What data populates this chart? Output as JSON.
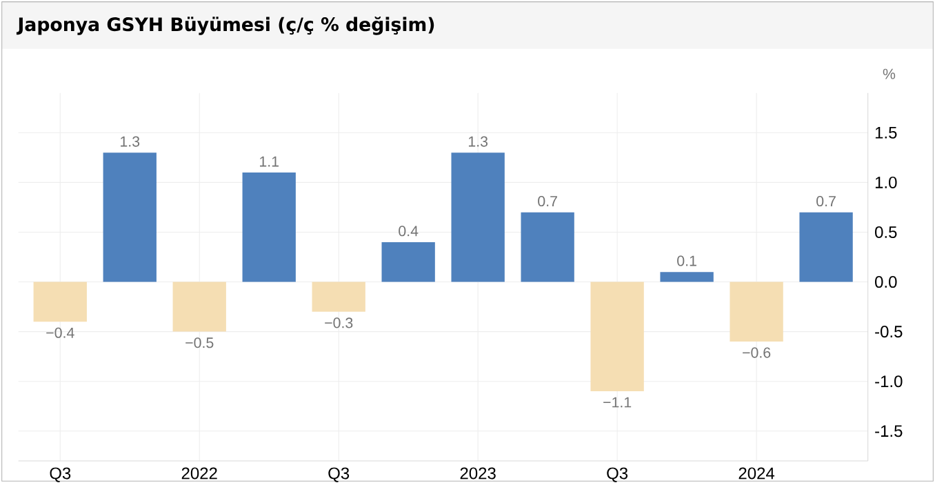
{
  "chart_data": {
    "type": "bar",
    "title": "Japonya GSYH Büyümesi (ç/ç % değişim)",
    "ylabel": "%",
    "categories": [
      "Q3",
      null,
      "2022",
      null,
      "Q3",
      null,
      "2023",
      null,
      "Q3",
      null,
      "2024",
      null
    ],
    "values": [
      -0.4,
      1.3,
      -0.5,
      1.1,
      -0.3,
      0.4,
      1.3,
      0.7,
      -1.1,
      0.1,
      -0.6,
      0.7
    ],
    "colors": [
      "#f5deb3",
      "#4f81bd",
      "#f5deb3",
      "#4f81bd",
      "#f5deb3",
      "#4f81bd",
      "#4f81bd",
      "#4f81bd",
      "#f5deb3",
      "#4f81bd",
      "#f5deb3",
      "#4f81bd"
    ],
    "value_labels": [
      "−0.4",
      "1.3",
      "−0.5",
      "1.1",
      "−0.3",
      "0.4",
      "1.3",
      "0.7",
      "−1.1",
      "0.1",
      "−0.6",
      "0.7"
    ],
    "ylim": [
      -1.8,
      1.9
    ],
    "yticks": [
      {
        "value": -1.5,
        "label": "-1.5"
      },
      {
        "value": -1.0,
        "label": "-1.0"
      },
      {
        "value": -0.5,
        "label": "-0.5"
      },
      {
        "value": 0,
        "label": "0.0"
      },
      {
        "value": 0.5,
        "label": "0.5"
      },
      {
        "value": 1.0,
        "label": "1.0"
      },
      {
        "value": 1.5,
        "label": "1.5"
      }
    ],
    "grid": true
  }
}
